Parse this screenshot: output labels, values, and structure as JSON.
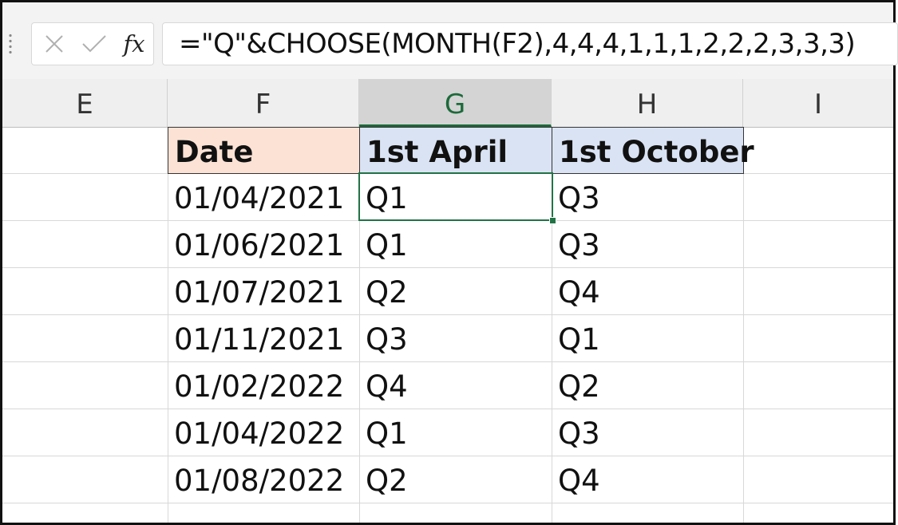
{
  "formula_bar": {
    "cancel_icon": "close-icon",
    "enter_icon": "checkmark-icon",
    "fx_label": "fx",
    "formula": "=\"Q\"&CHOOSE(MONTH(F2),4,4,4,1,1,1,2,2,2,3,3,3)"
  },
  "columns": [
    "E",
    "F",
    "G",
    "H",
    "I"
  ],
  "selected_column": "G",
  "headers": {
    "date": "Date",
    "april": "1st April",
    "october": "1st October"
  },
  "rows": [
    {
      "date": "01/04/2021",
      "april": "Q1",
      "october": "Q3"
    },
    {
      "date": "01/06/2021",
      "april": "Q1",
      "october": "Q3"
    },
    {
      "date": "01/07/2021",
      "april": "Q2",
      "october": "Q4"
    },
    {
      "date": "01/11/2021",
      "april": "Q3",
      "october": "Q1"
    },
    {
      "date": "01/02/2022",
      "april": "Q4",
      "october": "Q2"
    },
    {
      "date": "01/04/2022",
      "april": "Q1",
      "october": "Q3"
    },
    {
      "date": "01/08/2022",
      "april": "Q2",
      "october": "Q4"
    }
  ],
  "colors": {
    "date_header_fill": "#fbe2d5",
    "quarter_header_fill": "#dae3f3",
    "selection_accent": "#217346"
  }
}
